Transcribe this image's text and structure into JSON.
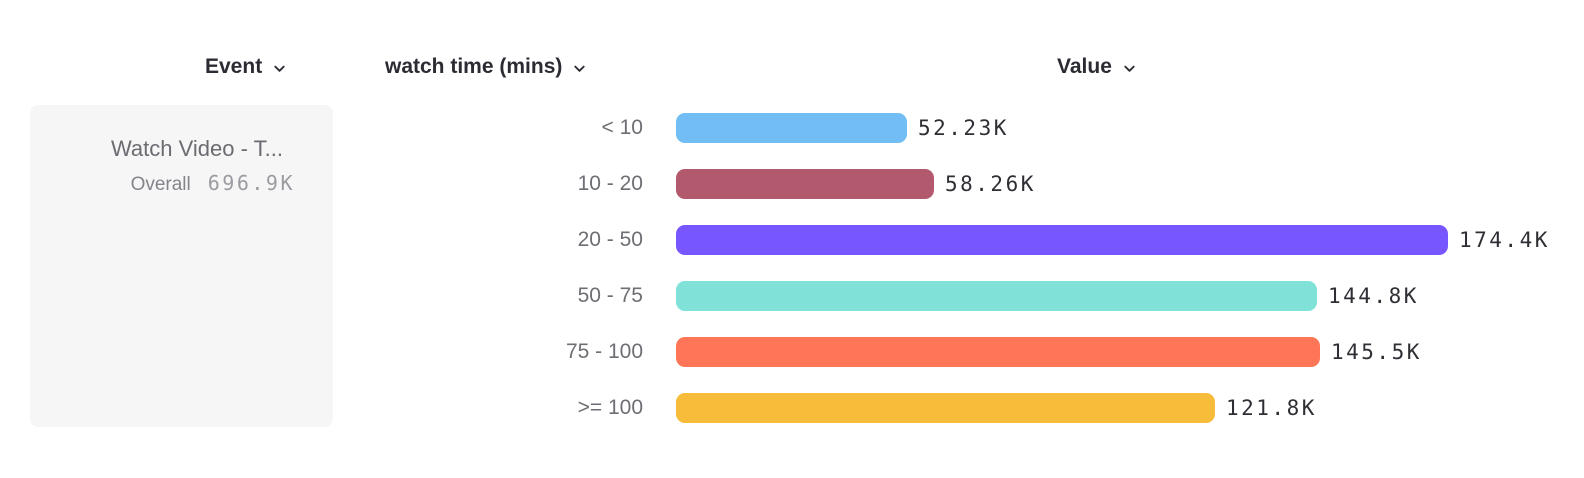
{
  "headers": {
    "event": "Event",
    "breakdown": "watch time (mins)",
    "value": "Value"
  },
  "event_card": {
    "name": "Watch Video - T...",
    "overall_label": "Overall",
    "overall_value": "696.9K"
  },
  "chart_data": {
    "type": "bar",
    "orientation": "horizontal",
    "categories": [
      "< 10",
      "10 - 20",
      "20 - 50",
      "50 - 75",
      "75 - 100",
      ">= 100"
    ],
    "values": [
      52230,
      58260,
      174400,
      144800,
      145500,
      121800
    ],
    "value_labels": [
      "52.23K",
      "58.26K",
      "174.4K",
      "144.8K",
      "145.5K",
      "121.8K"
    ],
    "bar_colors": [
      "#72BEF4",
      "#B2596E",
      "#7856FF",
      "#80E1D9",
      "#FF7557",
      "#F8BC3B"
    ],
    "series_name": "watch time (mins)",
    "xlabel": "Value",
    "xlim": [
      0,
      174400
    ],
    "grid": false,
    "legend": "none"
  }
}
